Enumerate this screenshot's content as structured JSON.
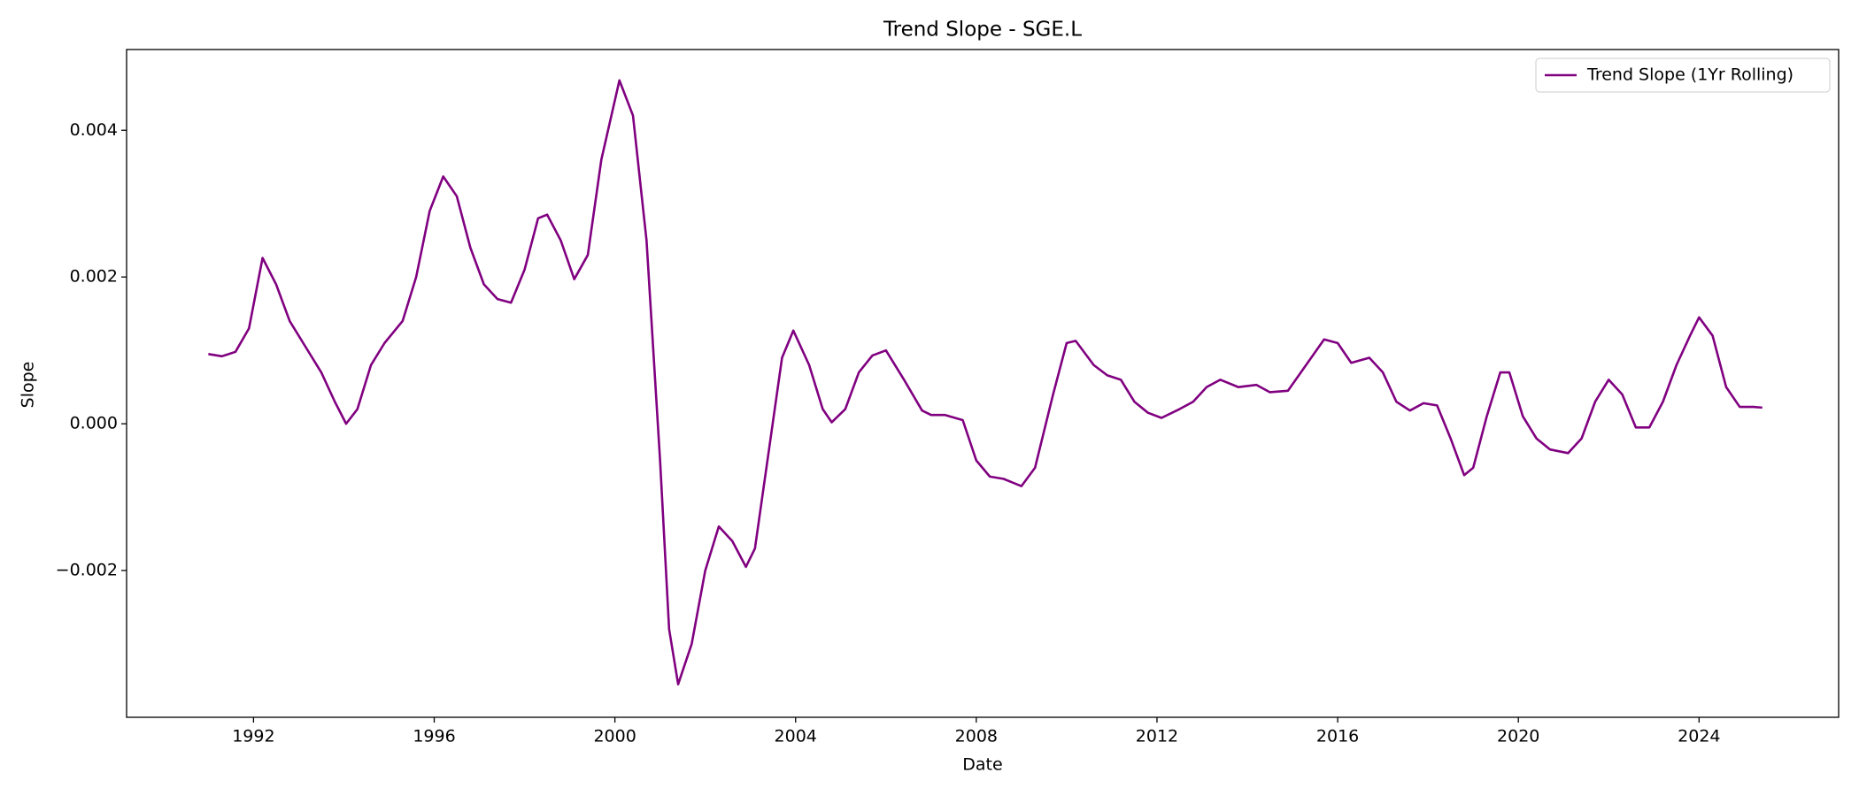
{
  "chart_data": {
    "type": "line",
    "title": "Trend Slope - SGE.L",
    "x_label": "Date",
    "y_label": "Slope",
    "x": [
      1991.0,
      1991.3,
      1991.6,
      1991.9,
      1992.2,
      1992.5,
      1992.8,
      1993.1,
      1993.5,
      1993.8,
      1994.05,
      1994.3,
      1994.6,
      1994.9,
      1995.3,
      1995.6,
      1995.9,
      1996.2,
      1996.5,
      1996.8,
      1997.1,
      1997.4,
      1997.7,
      1998.0,
      1998.3,
      1998.5,
      1998.8,
      1999.1,
      1999.4,
      1999.7,
      2000.1,
      2000.4,
      2000.7,
      2001.0,
      2001.2,
      2001.4,
      2001.7,
      2002.0,
      2002.3,
      2002.6,
      2002.9,
      2003.1,
      2003.4,
      2003.7,
      2003.95,
      2004.3,
      2004.6,
      2004.8,
      2005.1,
      2005.4,
      2005.7,
      2006.0,
      2006.4,
      2006.8,
      2007.0,
      2007.3,
      2007.7,
      2008.0,
      2008.3,
      2008.6,
      2009.0,
      2009.3,
      2009.7,
      2010.0,
      2010.2,
      2010.6,
      2010.9,
      2011.2,
      2011.5,
      2011.8,
      2012.1,
      2012.5,
      2012.8,
      2013.1,
      2013.4,
      2013.8,
      2014.2,
      2014.5,
      2014.9,
      2015.3,
      2015.7,
      2016.0,
      2016.3,
      2016.7,
      2017.0,
      2017.3,
      2017.6,
      2017.9,
      2018.2,
      2018.5,
      2018.8,
      2019.0,
      2019.3,
      2019.6,
      2019.8,
      2020.1,
      2020.4,
      2020.7,
      2021.1,
      2021.4,
      2021.7,
      2022.0,
      2022.3,
      2022.6,
      2022.9,
      2023.2,
      2023.5,
      2023.8,
      2024.0,
      2024.3,
      2024.6,
      2024.9,
      2025.2,
      2025.4
    ],
    "series": [
      {
        "name": "Trend Slope (1Yr Rolling)",
        "color": "#800080",
        "values": [
          0.00095,
          0.00092,
          0.00098,
          0.0013,
          0.00226,
          0.0019,
          0.0014,
          0.0011,
          0.0007,
          0.0003,
          0.0,
          0.0002,
          0.0008,
          0.0011,
          0.0014,
          0.002,
          0.0029,
          0.00337,
          0.0031,
          0.0024,
          0.0019,
          0.0017,
          0.00165,
          0.0021,
          0.0028,
          0.00285,
          0.0025,
          0.00197,
          0.0023,
          0.0036,
          0.00468,
          0.0042,
          0.0025,
          -0.0005,
          -0.0028,
          -0.00355,
          -0.003,
          -0.002,
          -0.0014,
          -0.0016,
          -0.00195,
          -0.0017,
          -0.0004,
          0.0009,
          0.00127,
          0.0008,
          0.0002,
          2e-05,
          0.0002,
          0.0007,
          0.00093,
          0.001,
          0.0006,
          0.00018,
          0.00012,
          0.00012,
          5e-05,
          -0.0005,
          -0.00072,
          -0.00075,
          -0.00085,
          -0.0006,
          0.0004,
          0.0011,
          0.00113,
          0.0008,
          0.00066,
          0.0006,
          0.0003,
          0.00015,
          8e-05,
          0.0002,
          0.0003,
          0.0005,
          0.0006,
          0.0005,
          0.00053,
          0.00043,
          0.00045,
          0.0008,
          0.00115,
          0.0011,
          0.00083,
          0.0009,
          0.0007,
          0.0003,
          0.00018,
          0.00028,
          0.00025,
          -0.0002,
          -0.0007,
          -0.0006,
          0.0001,
          0.0007,
          0.0007,
          0.0001,
          -0.0002,
          -0.00035,
          -0.0004,
          -0.0002,
          0.0003,
          0.0006,
          0.0004,
          -5e-05,
          -5e-05,
          0.0003,
          0.0008,
          0.0012,
          0.00145,
          0.0012,
          0.0005,
          0.00023,
          0.00023,
          0.00022
        ]
      }
    ],
    "xlim": [
      1989.19,
      2027.09
    ],
    "xticks": [
      1992,
      1996,
      2000,
      2004,
      2008,
      2012,
      2016,
      2020,
      2024
    ],
    "ylim": [
      -0.004,
      0.0051
    ],
    "yticks": [
      {
        "value": -0.002,
        "label": "−0.002"
      },
      {
        "value": 0,
        "label": "0.000"
      },
      {
        "value": 0.002,
        "label": "0.002"
      },
      {
        "value": 0.004,
        "label": "0.004"
      }
    ],
    "legend": "upper right"
  }
}
